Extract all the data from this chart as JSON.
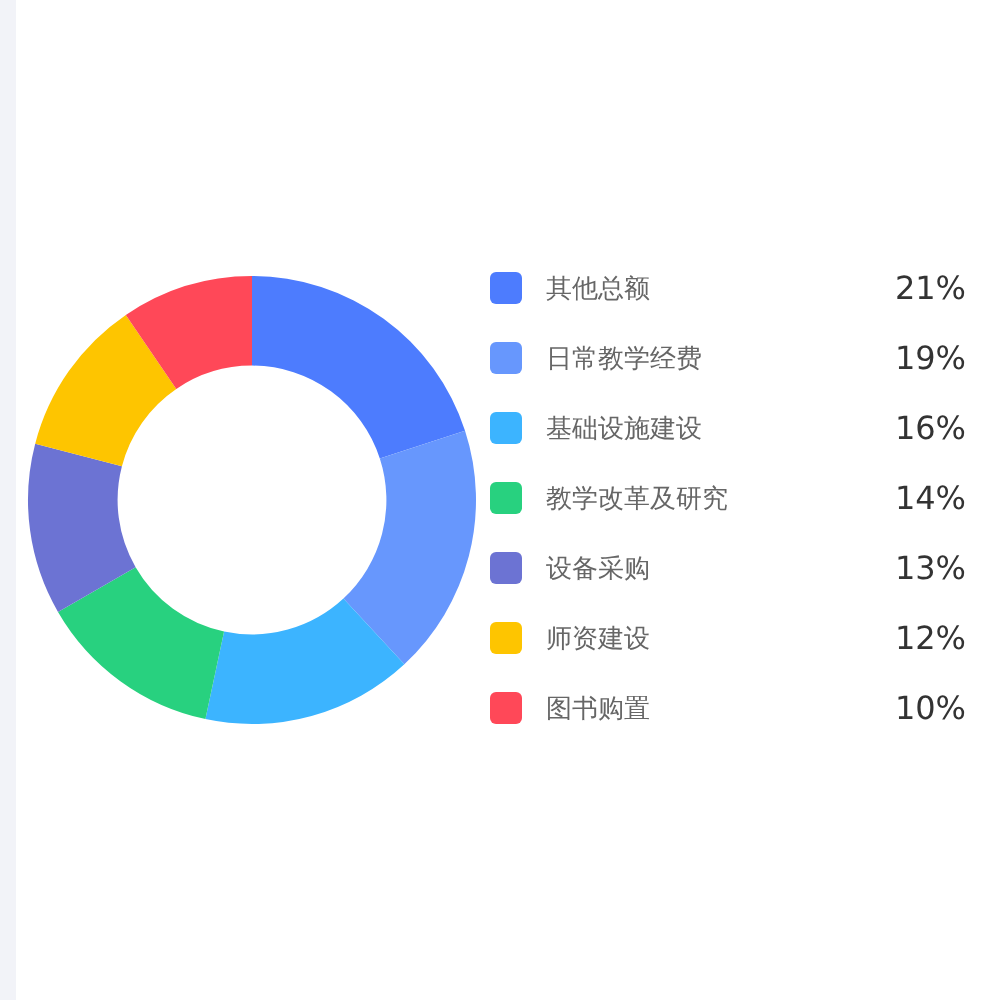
{
  "chart_data": {
    "type": "donut",
    "categories": [
      "其他总额",
      "日常教学经费",
      "基础设施建设",
      "教学改革及研究",
      "设备采购",
      "师资建设",
      "图书购置"
    ],
    "values": [
      21,
      19,
      16,
      14,
      13,
      12,
      10
    ],
    "colors": [
      "#4d7cfe",
      "#6797fd",
      "#3cb4ff",
      "#28d17f",
      "#6c73d3",
      "#fec500",
      "#ff4858"
    ],
    "value_labels": [
      "21%",
      "19%",
      "16%",
      "14%",
      "13%",
      "12%",
      "10%"
    ],
    "legend": "right"
  }
}
